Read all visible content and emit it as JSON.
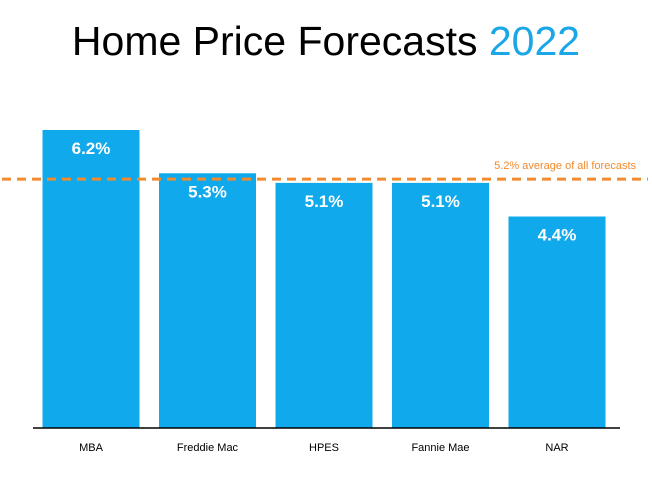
{
  "title": {
    "main": "Home Price Forecasts",
    "year": "2022"
  },
  "colors": {
    "bar": "#0fa9ec",
    "average_line": "#f28a2e",
    "axis": "#000000",
    "title_accent": "#1aa7e8"
  },
  "chart_data": {
    "type": "bar",
    "title": "Home Price Forecasts 2022",
    "categories": [
      "MBA",
      "Freddie Mac",
      "HPES",
      "Fannie Mae",
      "NAR"
    ],
    "values": [
      6.2,
      5.3,
      5.1,
      5.1,
      4.4
    ],
    "value_labels": [
      "6.2%",
      "5.3%",
      "5.1%",
      "5.1%",
      "4.4%"
    ],
    "unit": "%",
    "ylim": [
      0,
      6.2
    ],
    "grid": false,
    "reference_line": {
      "value": 5.2,
      "label": "5.2% average of all forecasts",
      "style": "dashed"
    }
  }
}
